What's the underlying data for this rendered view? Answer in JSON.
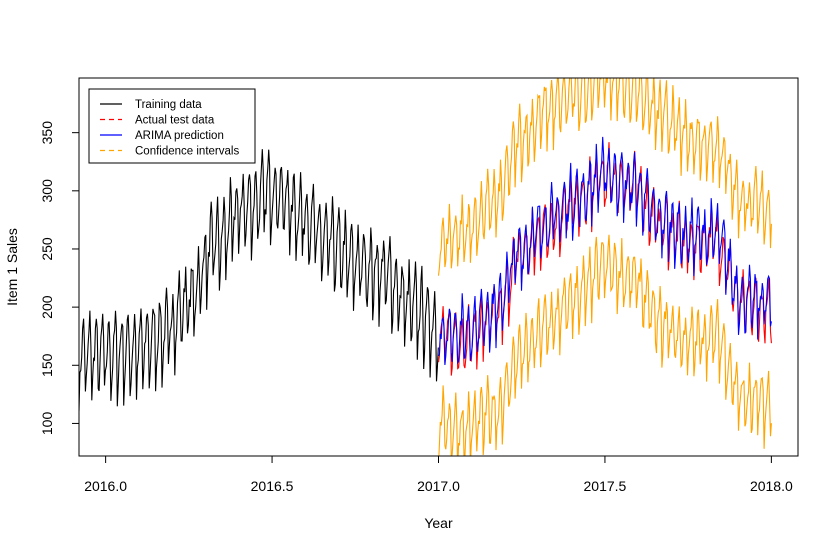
{
  "chart_data": {
    "type": "line",
    "title": "",
    "xlabel": "Year",
    "ylabel": "Item 1 Sales",
    "xlim": [
      2015.92,
      2018.08
    ],
    "ylim": [
      72,
      397
    ],
    "x_ticks": [
      2016.0,
      2016.5,
      2017.0,
      2017.5,
      2018.0
    ],
    "x_tick_labels": [
      "2016.0",
      "2016.5",
      "2017.0",
      "2017.5",
      "2018.0"
    ],
    "y_ticks": [
      100,
      150,
      200,
      250,
      300,
      350
    ],
    "y_tick_labels": [
      "100",
      "150",
      "200",
      "250",
      "300",
      "350"
    ],
    "grid": false,
    "legend_position": "top-left",
    "series": [
      {
        "name": "Training data",
        "color": "#000000",
        "dash": "solid",
        "x": [
          2015.92,
          2016.0,
          2016.08,
          2016.17,
          2016.25,
          2016.33,
          2016.42,
          2016.5,
          2016.58,
          2016.67,
          2016.75,
          2016.83,
          2016.92,
          2017.0
        ],
        "values": [
          158,
          160,
          162,
          175,
          205,
          255,
          285,
          300,
          282,
          255,
          238,
          230,
          200,
          182
        ]
      },
      {
        "name": "Actual test data",
        "color": "#ff0000",
        "dash": "dashed",
        "x": [
          2017.0,
          2017.08,
          2017.17,
          2017.25,
          2017.33,
          2017.42,
          2017.5,
          2017.58,
          2017.67,
          2017.75,
          2017.83,
          2017.92,
          2018.0
        ],
        "values": [
          175,
          172,
          190,
          245,
          270,
          290,
          310,
          305,
          270,
          255,
          258,
          200,
          195
        ]
      },
      {
        "name": "ARIMA prediction",
        "color": "#0000ff",
        "dash": "solid",
        "x": [
          2017.0,
          2017.08,
          2017.17,
          2017.25,
          2017.33,
          2017.42,
          2017.5,
          2017.58,
          2017.67,
          2017.75,
          2017.83,
          2017.92,
          2018.0
        ],
        "values": [
          178,
          180,
          198,
          250,
          275,
          295,
          315,
          305,
          275,
          262,
          262,
          205,
          205
        ]
      },
      {
        "name": "Confidence intervals",
        "color": "#ffa500",
        "dash": "dashed",
        "x": [
          2017.0,
          2017.08,
          2017.17,
          2017.25,
          2017.33,
          2017.42,
          2017.5,
          2017.58,
          2017.67,
          2017.75,
          2017.83,
          2017.92,
          2018.0
        ],
        "upper": [
          255,
          265,
          290,
          345,
          370,
          385,
          395,
          390,
          365,
          345,
          340,
          290,
          285
        ],
        "lower": [
          100,
          95,
          110,
          160,
          185,
          210,
          235,
          225,
          185,
          170,
          175,
          120,
          115
        ]
      }
    ]
  }
}
